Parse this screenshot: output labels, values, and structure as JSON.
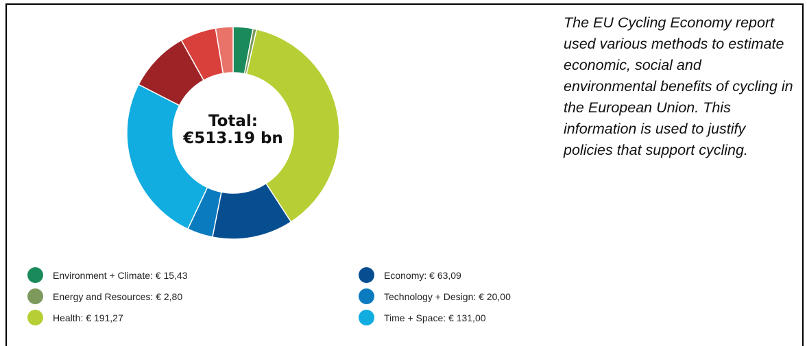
{
  "chart_data": {
    "type": "pie",
    "center_label": {
      "line1": "Total:",
      "line2": "€513.19 bn"
    },
    "slices": [
      {
        "label": "Environment + Climate",
        "value": 15.43,
        "color": "#1a8a5b",
        "legend_text": "Environment + Climate: € 15,43"
      },
      {
        "label": "Energy and Resources",
        "value": 2.8,
        "color": "#7d9a5c",
        "legend_text": "Energy and Resources: € 2,80"
      },
      {
        "label": "Health",
        "value": 191.27,
        "color": "#b7cf35",
        "legend_text": "Health: € 191,27"
      },
      {
        "label": "Economy",
        "value": 63.09,
        "color": "#074e91",
        "legend_text": "Economy: € 63,09"
      },
      {
        "label": "Technology + Design",
        "value": 20.0,
        "color": "#0a7bbf",
        "legend_text": "Technology + Design: € 20,00"
      },
      {
        "label": "Time + Space",
        "value": 131.0,
        "color": "#11ace0",
        "legend_text": "Time + Space: € 131,00"
      },
      {
        "label": "",
        "value": 48,
        "color": "#9e2326"
      },
      {
        "label": "",
        "value": 28,
        "color": "#d9403c"
      },
      {
        "label": "",
        "value": 13.6,
        "color": "#e87369"
      }
    ]
  },
  "caption": "The EU Cycling Economy report used various methods to estimate economic, social and environmental benefits of cycling in the European Union. This information is used to justify policies that support cycling."
}
